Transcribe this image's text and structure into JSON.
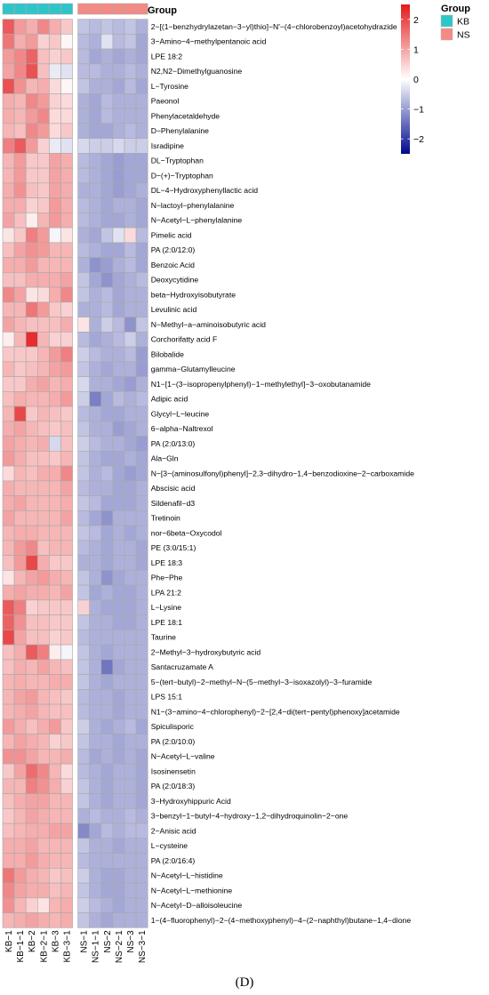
{
  "chart_data": {
    "type": "heatmap",
    "annotation_title": "Group",
    "legend_title": "Group",
    "groups": [
      {
        "name": "KB",
        "color": "#2ec5c9"
      },
      {
        "name": "NS",
        "color": "#f38a84"
      }
    ],
    "colorbar": {
      "ticks": [
        2,
        1,
        0,
        -1,
        -2
      ],
      "tick_labels": [
        "2",
        "1",
        "0",
        "−1",
        "−2"
      ],
      "range": [
        -2.5,
        2.5
      ],
      "high_color": "#e31a1c",
      "mid_color": "#ffffff",
      "low_color": "#000a8c"
    },
    "columns": [
      "KB−1",
      "KB−1−1",
      "KB−2",
      "KB−2−1",
      "KB−3",
      "KB−3−1",
      "NS−1",
      "NS−1−1",
      "NS−2",
      "NS−2−1",
      "NS−3",
      "NS−3−1"
    ],
    "column_groups": [
      "KB",
      "KB",
      "KB",
      "KB",
      "KB",
      "KB",
      "NS",
      "NS",
      "NS",
      "NS",
      "NS",
      "NS"
    ],
    "rows": [
      "2−[(1−benzhydrylazetan−3−yl)thio]−N′−(4−chlorobenzoyl)acetohydrazide",
      "3−Amino−4−methylpentanoic acid",
      "LPE 18:2",
      "N2,N2−Dimethylguanosine",
      "L−Tyrosine",
      "Paeonol",
      "Phenylacetaldehyde",
      "D−Phenylalanine",
      "Isradipine",
      "DL−Tryptophan",
      "D−(+)−Tryptophan",
      "DL−4−Hydroxyphenyllactic acid",
      "N−lactoyl−phenylalanine",
      "N−Acetyl−L−phenylalanine",
      "Pimelic acid",
      "PA (2:0/12:0)",
      "Benzoic Acid",
      "Deoxycytidine",
      "beta−Hydroxyisobutyrate",
      "Levulinic acid",
      "N−Methyl−a−aminoisobutyric acid",
      "Corchorifatty acid F",
      "Bilobalide",
      "gamma−Glutamylleucine",
      "N1−[1−(3−isopropenylphenyl)−1−methylethyl]−3−oxobutanamide",
      "Adipic acid",
      "Glycyl−L−leucine",
      "6−alpha−Naltrexol",
      "PA (2:0/13:0)",
      "Ala−Gln",
      "N−[3−(aminosulfonyl)phenyl]−2,3−dihydro−1,4−benzodioxine−2−carboxamide",
      "Abscisic acid",
      "Sildenafil−d3",
      "Tretinoin",
      "nor−6beta−Oxycodol",
      "PE (3:0/15:1)",
      "LPE 18:3",
      "Phe−Phe",
      "LPA 21:2",
      "L−Lysine",
      "LPE 18:1",
      "Taurine",
      "2−Methyl−3−hydroxybutyric acid",
      "Santacruzamate A",
      "5−(tert−butyl)−2−methyl−N−(5−methyl−3−isoxazolyl)−3−furamide",
      "LPS 15:1",
      "N1−(3−amino−4−chlorophenyl)−2−[2,4−di(tert−pentyl)phenoxy]acetamide",
      "Spiculisporic",
      "PA (2:0/10:0)",
      "N−Acetyl−L−valine",
      "Isosinensetin",
      "PA (2:0/18:3)",
      "3−Hydroxyhippuric Acid",
      "3−benzyl−1−butyl−4−hydroxy−1,2−dihydroquinolin−2−one",
      "2−Anisic acid",
      "L−cysteine",
      "PA (2:0/16:4)",
      "N−Acetyl−L−histidine",
      "N−Acetyl−L−methionine",
      "N−Acetyl−D−alloisoleucine",
      "1−(4−fluorophenyl)−2−(4−methoxyphenyl)−4−(2−naphthyl)butane−1,4−dione"
    ],
    "values": [
      [
        1.8,
        1.1,
        0.9,
        1.3,
        0.9,
        0.6,
        -0.6,
        -0.7,
        -0.6,
        -0.7,
        -0.6,
        -0.8
      ],
      [
        1.5,
        0.9,
        1.1,
        0.5,
        0.6,
        0.1,
        -0.7,
        -0.8,
        -0.3,
        -0.7,
        -0.6,
        -0.9
      ],
      [
        1.1,
        1.3,
        1.7,
        0.7,
        0.5,
        0.6,
        -0.7,
        -0.9,
        -0.8,
        -0.9,
        -0.8,
        -0.9
      ],
      [
        1.0,
        1.3,
        1.9,
        0.7,
        -0.2,
        -0.3,
        -0.7,
        -0.7,
        -0.8,
        -0.8,
        -0.7,
        -0.8
      ],
      [
        1.9,
        1.2,
        0.8,
        0.9,
        0.4,
        0.1,
        -0.6,
        -0.8,
        -0.8,
        -0.9,
        -0.7,
        -0.9
      ],
      [
        0.9,
        0.8,
        1.3,
        1.1,
        0.5,
        0.4,
        -0.8,
        -0.9,
        -0.7,
        -0.8,
        -0.8,
        -0.8
      ],
      [
        0.9,
        0.8,
        1.1,
        1.3,
        0.4,
        0.4,
        -0.8,
        -0.9,
        -0.7,
        -0.8,
        -0.8,
        -0.8
      ],
      [
        0.8,
        0.7,
        1.3,
        1.1,
        0.4,
        0.6,
        -0.8,
        -0.9,
        -0.9,
        -0.8,
        -0.7,
        -0.8
      ],
      [
        1.4,
        1.8,
        1.1,
        0.5,
        -0.2,
        -0.3,
        -0.4,
        -0.5,
        -0.5,
        -0.4,
        -0.5,
        -0.5
      ],
      [
        0.8,
        1.1,
        0.6,
        0.6,
        1.0,
        0.9,
        -0.7,
        -0.8,
        -0.9,
        -1.0,
        -0.9,
        -0.9
      ],
      [
        0.8,
        1.1,
        0.6,
        0.6,
        1.0,
        0.9,
        -0.7,
        -0.8,
        -0.9,
        -1.0,
        -0.9,
        -0.9
      ],
      [
        0.9,
        1.2,
        0.7,
        0.6,
        1.0,
        0.9,
        -0.8,
        -0.8,
        -0.9,
        -1.0,
        -0.9,
        -0.8
      ],
      [
        0.9,
        0.9,
        0.5,
        0.6,
        1.1,
        0.9,
        -0.7,
        -0.8,
        -0.9,
        -0.8,
        -0.8,
        -0.9
      ],
      [
        1.0,
        0.7,
        0.2,
        0.8,
        1.1,
        0.9,
        -0.7,
        -0.8,
        -0.9,
        -0.9,
        -0.8,
        -0.9
      ],
      [
        0.3,
        0.6,
        1.4,
        1.1,
        -0.1,
        0.3,
        -0.8,
        -0.9,
        -0.6,
        -0.3,
        0.4,
        -0.7
      ],
      [
        0.7,
        1.0,
        1.2,
        1.1,
        0.8,
        0.8,
        -0.7,
        -0.8,
        -0.9,
        -0.9,
        -0.7,
        -0.9
      ],
      [
        0.9,
        0.9,
        1.1,
        0.8,
        0.8,
        0.8,
        -0.8,
        -1.1,
        -1.0,
        -0.8,
        -0.7,
        -0.9
      ],
      [
        0.7,
        0.7,
        0.9,
        0.9,
        0.9,
        1.0,
        -0.6,
        -0.9,
        -1.1,
        -0.9,
        -0.8,
        -0.7
      ],
      [
        1.3,
        1.0,
        0.3,
        0.4,
        0.9,
        1.3,
        -0.6,
        -0.8,
        -0.7,
        -0.9,
        -0.8,
        -0.8
      ],
      [
        0.8,
        0.8,
        1.5,
        1.1,
        0.6,
        0.5,
        -0.8,
        -0.8,
        -0.7,
        -0.9,
        -0.8,
        -0.8
      ],
      [
        1.0,
        0.8,
        0.7,
        0.7,
        0.7,
        0.9,
        0.3,
        -0.8,
        -0.5,
        -0.7,
        -1.1,
        -0.6
      ],
      [
        0.2,
        0.8,
        2.3,
        0.8,
        0.5,
        0.5,
        -0.7,
        -0.9,
        -0.8,
        -0.7,
        -0.5,
        -0.8
      ],
      [
        0.6,
        0.6,
        0.6,
        0.8,
        1.1,
        1.4,
        -0.5,
        -0.7,
        -0.8,
        -0.8,
        -0.7,
        -1.0
      ],
      [
        0.8,
        0.6,
        0.7,
        0.8,
        1.0,
        1.1,
        -0.6,
        -0.8,
        -0.9,
        -0.8,
        -0.8,
        -1.0
      ],
      [
        0.6,
        0.6,
        0.9,
        1.0,
        0.8,
        0.9,
        -0.4,
        -0.8,
        -0.8,
        -0.9,
        -1.0,
        -0.8
      ],
      [
        0.7,
        0.9,
        0.8,
        0.8,
        0.9,
        1.1,
        -0.5,
        -1.3,
        -0.9,
        -0.7,
        -0.8,
        -0.7
      ],
      [
        0.8,
        2.0,
        0.6,
        0.8,
        0.7,
        0.6,
        -0.7,
        -0.8,
        -0.9,
        -0.9,
        -0.8,
        -0.8
      ],
      [
        0.9,
        1.0,
        0.8,
        0.7,
        0.6,
        0.7,
        -0.6,
        -0.8,
        -0.8,
        -1.0,
        -0.9,
        -0.8
      ],
      [
        1.0,
        0.9,
        0.8,
        0.9,
        -0.4,
        0.7,
        -0.5,
        -0.7,
        -0.8,
        -0.8,
        -0.9,
        -1.0
      ],
      [
        1.1,
        0.9,
        0.7,
        0.7,
        0.6,
        0.8,
        -0.6,
        -0.8,
        -0.9,
        -0.9,
        -0.8,
        -0.9
      ],
      [
        0.4,
        0.8,
        0.7,
        0.9,
        0.9,
        1.3,
        -0.6,
        -0.8,
        -0.7,
        -0.9,
        -1.0,
        -0.9
      ],
      [
        0.9,
        0.8,
        0.8,
        0.8,
        0.8,
        1.0,
        -0.7,
        -0.8,
        -0.8,
        -0.9,
        -0.9,
        -0.8
      ],
      [
        0.9,
        1.0,
        0.8,
        0.8,
        0.8,
        0.9,
        -0.6,
        -0.7,
        -0.9,
        -0.9,
        -0.9,
        -0.8
      ],
      [
        1.0,
        0.8,
        0.8,
        0.8,
        0.8,
        1.0,
        -0.7,
        -0.9,
        -1.1,
        -0.8,
        -0.8,
        -0.8
      ],
      [
        0.8,
        0.9,
        0.9,
        0.8,
        0.8,
        0.8,
        -0.6,
        -0.7,
        -0.9,
        -0.8,
        -0.9,
        -0.8
      ],
      [
        0.8,
        1.1,
        1.3,
        0.7,
        0.8,
        0.8,
        -0.7,
        -0.8,
        -0.9,
        -0.8,
        -0.8,
        -0.9
      ],
      [
        0.7,
        1.1,
        2.0,
        0.9,
        0.6,
        0.6,
        -0.8,
        -0.8,
        -0.9,
        -0.8,
        -0.8,
        -0.9
      ],
      [
        0.3,
        0.8,
        1.0,
        1.1,
        0.9,
        0.8,
        -0.6,
        -0.8,
        -1.1,
        -0.9,
        -0.8,
        -0.8
      ],
      [
        0.9,
        1.0,
        0.9,
        0.9,
        0.8,
        1.0,
        -0.6,
        -0.9,
        -0.8,
        -0.9,
        -0.9,
        -0.8
      ],
      [
        1.8,
        1.4,
        0.5,
        0.6,
        0.6,
        0.6,
        0.5,
        -0.8,
        -0.9,
        -0.9,
        -0.9,
        -0.8
      ],
      [
        1.7,
        1.2,
        0.7,
        0.7,
        0.6,
        0.6,
        -0.6,
        -0.8,
        -0.8,
        -0.9,
        -0.9,
        -0.8
      ],
      [
        2.0,
        1.0,
        0.7,
        0.7,
        0.5,
        0.6,
        -0.7,
        -0.8,
        -0.8,
        -0.8,
        -0.8,
        -0.8
      ],
      [
        0.7,
        0.9,
        1.8,
        1.4,
        0.2,
        -0.1,
        -0.6,
        -0.8,
        -0.9,
        -0.8,
        -0.8,
        -0.8
      ],
      [
        0.7,
        0.9,
        0.8,
        1.0,
        0.8,
        0.7,
        -0.6,
        -0.8,
        -1.4,
        -0.9,
        -0.8,
        -0.8
      ],
      [
        0.8,
        0.9,
        0.8,
        0.8,
        0.9,
        0.9,
        -0.6,
        -0.8,
        -0.9,
        -0.8,
        -0.8,
        -0.8
      ],
      [
        0.8,
        1.0,
        1.1,
        0.8,
        0.7,
        0.6,
        -0.7,
        -0.8,
        -0.8,
        -0.9,
        -0.8,
        -0.8
      ],
      [
        0.8,
        0.9,
        1.0,
        0.8,
        0.7,
        0.7,
        -0.7,
        -0.8,
        -0.8,
        -0.9,
        -0.8,
        -0.8
      ],
      [
        1.1,
        0.9,
        0.7,
        0.9,
        1.1,
        0.6,
        -0.5,
        -0.8,
        -0.9,
        -0.8,
        -0.7,
        -0.9
      ],
      [
        0.8,
        1.0,
        0.9,
        0.8,
        0.5,
        0.6,
        -0.6,
        -0.8,
        -0.8,
        -0.9,
        -0.8,
        -0.8
      ],
      [
        1.2,
        1.2,
        1.0,
        0.8,
        0.8,
        0.9,
        -0.7,
        -0.9,
        -0.8,
        -0.9,
        -0.8,
        -0.9
      ],
      [
        0.6,
        1.0,
        1.6,
        1.3,
        0.8,
        0.4,
        -0.7,
        -0.8,
        -0.9,
        -0.8,
        -0.8,
        -0.9
      ],
      [
        0.8,
        0.8,
        1.4,
        1.2,
        0.9,
        0.5,
        -0.6,
        -0.8,
        -0.9,
        -0.8,
        -0.8,
        -0.9
      ],
      [
        0.7,
        0.9,
        1.0,
        1.0,
        0.8,
        0.8,
        -0.6,
        -0.8,
        -0.9,
        -0.8,
        -0.8,
        -0.9
      ],
      [
        0.6,
        0.8,
        1.0,
        0.9,
        0.8,
        0.8,
        -0.8,
        -0.7,
        -0.8,
        -0.8,
        -0.7,
        -0.8
      ],
      [
        0.7,
        0.8,
        0.9,
        0.9,
        1.0,
        1.0,
        -1.2,
        -0.9,
        -0.7,
        -0.8,
        -0.7,
        -0.7
      ],
      [
        0.9,
        0.9,
        1.0,
        0.8,
        0.8,
        0.8,
        -0.6,
        -0.8,
        -0.8,
        -0.9,
        -0.8,
        -0.8
      ],
      [
        0.9,
        0.9,
        1.1,
        0.9,
        0.8,
        0.8,
        -0.7,
        -0.8,
        -0.8,
        -0.8,
        -0.8,
        -0.8
      ],
      [
        1.5,
        1.1,
        0.9,
        0.8,
        0.6,
        0.7,
        -0.5,
        -0.8,
        -0.9,
        -0.9,
        -0.8,
        -0.8
      ],
      [
        1.3,
        1.0,
        0.9,
        0.9,
        0.7,
        0.8,
        -0.6,
        -0.8,
        -0.9,
        -0.9,
        -0.8,
        -0.8
      ],
      [
        1.2,
        0.8,
        0.5,
        0.3,
        0.8,
        0.9,
        -0.5,
        -0.7,
        -0.8,
        -0.9,
        -0.8,
        -0.8
      ],
      [
        0.8,
        0.9,
        1.0,
        0.9,
        0.8,
        0.9,
        -0.6,
        -0.8,
        -0.9,
        -0.8,
        -0.8,
        -0.8
      ]
    ],
    "panel_label": "(D)"
  }
}
